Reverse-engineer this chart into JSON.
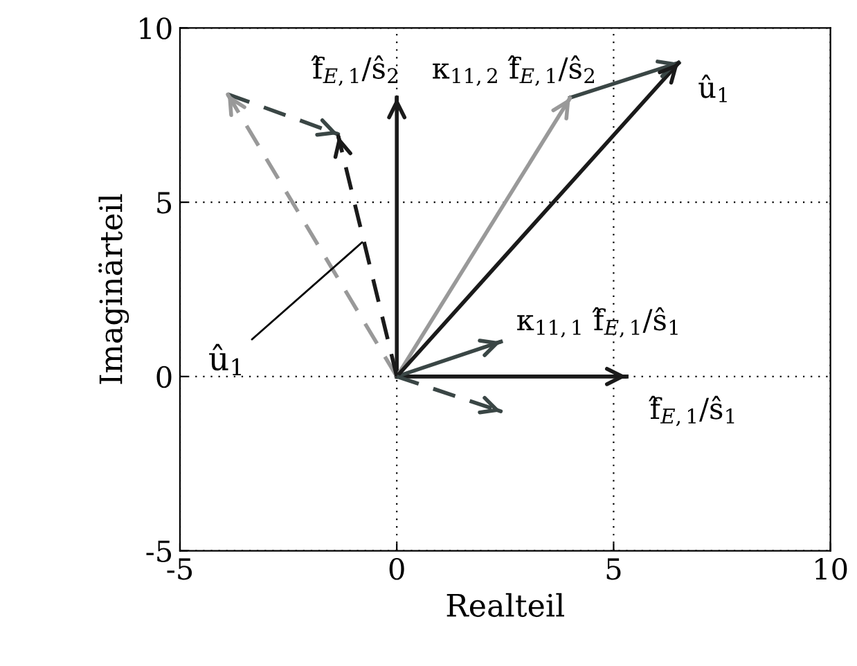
{
  "chart_data": {
    "type": "line",
    "xlabel": "Realteil",
    "ylabel": "Imaginärteil",
    "xlim": [
      -5,
      10
    ],
    "ylim": [
      -5,
      10
    ],
    "xticks": [
      -5,
      0,
      5,
      10
    ],
    "yticks": [
      -5,
      0,
      5,
      10
    ],
    "grid": true,
    "series": [
      {
        "color": "#1a1a1a",
        "x": [
          0,
          5.3
        ],
        "values": [
          0,
          0
        ],
        "line_style": "solid"
      },
      {
        "color": "#1a1a1a",
        "x": [
          0,
          0
        ],
        "values": [
          0,
          8
        ],
        "line_style": "solid"
      },
      {
        "color": "#999999",
        "x": [
          0,
          4
        ],
        "values": [
          0,
          8
        ],
        "line_style": "solid"
      },
      {
        "color": "#3a4645",
        "x": [
          0,
          2.4
        ],
        "values": [
          0,
          1.0
        ],
        "line_style": "solid"
      },
      {
        "color": "#3a4645",
        "x": [
          4,
          6.5
        ],
        "values": [
          8,
          9
        ],
        "line_style": "solid"
      },
      {
        "color": "#1a1a1a",
        "x": [
          0,
          6.5
        ],
        "values": [
          0,
          9
        ],
        "line_style": "solid"
      },
      {
        "color": "#999999",
        "x": [
          0,
          -3.9
        ],
        "values": [
          0,
          8.1
        ],
        "line_style": "dashed"
      },
      {
        "color": "#3a4645",
        "x": [
          -3.9,
          -1.35
        ],
        "values": [
          8.1,
          6.95
        ],
        "line_style": "dashed"
      },
      {
        "color": "#1a1a1a",
        "x": [
          0,
          -1.35
        ],
        "values": [
          0,
          6.9
        ],
        "line_style": "dashed"
      },
      {
        "color": "#3a4645",
        "x": [
          0,
          2.4
        ],
        "values": [
          0,
          -1.0
        ],
        "line_style": "dashed"
      }
    ],
    "annotations": [
      {
        "text": "f̂$_{E,1}$/ŝ$_{1}$",
        "x": 5.3,
        "y": 0
      },
      {
        "text": "f̂$_{E,1}$/ŝ$_{2}$",
        "x": 0,
        "y": 8
      },
      {
        "text": "κ$_{11,2}$ f̂$_{E,1}$/ŝ$_{2}$",
        "x": 4,
        "y": 8
      },
      {
        "text": "κ$_{11,1}$ f̂$_{E,1}$/ŝ$_{1}$",
        "x": 2.4,
        "y": 1.0
      },
      {
        "text": "û$_{1}$",
        "x": 6.5,
        "y": 9
      },
      {
        "text": "û$_{1}$",
        "x": -0.8,
        "y": 3.85
      }
    ]
  }
}
